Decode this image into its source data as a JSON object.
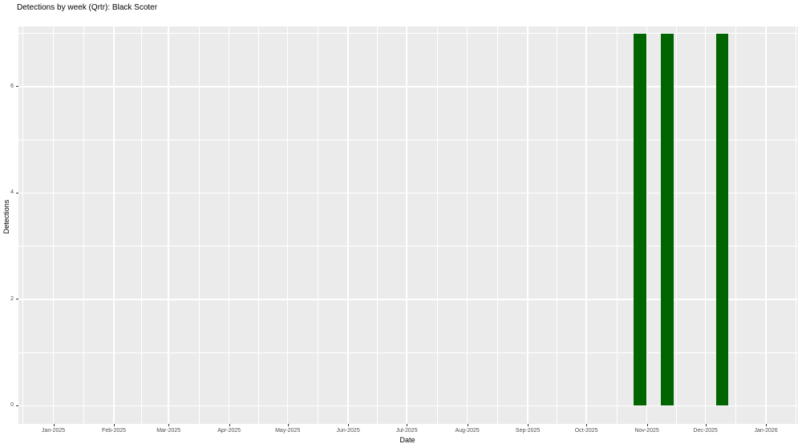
{
  "chart_data": {
    "type": "bar",
    "title": "Detections by week (Qrtr): Black Scoter",
    "xlabel": "Date",
    "ylabel": "Detections",
    "x_ticks": [
      {
        "label": "Jan-2025",
        "day": 0
      },
      {
        "label": "Feb-2025",
        "day": 31
      },
      {
        "label": "Mar-2025",
        "day": 59
      },
      {
        "label": "Apr-2025",
        "day": 90
      },
      {
        "label": "May-2025",
        "day": 120
      },
      {
        "label": "Jun-2025",
        "day": 151
      },
      {
        "label": "Jul-2025",
        "day": 181
      },
      {
        "label": "Aug-2025",
        "day": 212
      },
      {
        "label": "Sep-2025",
        "day": 243
      },
      {
        "label": "Oct-2025",
        "day": 273
      },
      {
        "label": "Nov-2025",
        "day": 304
      },
      {
        "label": "Dec-2025",
        "day": 334
      },
      {
        "label": "Jan-2026",
        "day": 365
      }
    ],
    "y_ticks": [
      0,
      2,
      4,
      6
    ],
    "y_minor": [
      1,
      3,
      5,
      7
    ],
    "x_domain_days": [
      -17.9,
      381.4
    ],
    "y_domain": [
      -0.34,
      7.13
    ],
    "grid": true,
    "legend": false,
    "points": [
      {
        "week": "2025-10-26",
        "day": 298,
        "count": 7
      },
      {
        "week": "2025-11-09",
        "day": 312,
        "count": 7
      },
      {
        "week": "2025-12-07",
        "day": 340,
        "count": 7
      }
    ],
    "bar_width_days": 6.3,
    "bar_center_offset_days": 2.5,
    "colors": {
      "bar": "#006400",
      "panel_bg": "#EBEBEB",
      "grid": "#FFFFFF",
      "axis_text": "#4D4D4D",
      "axis_title": "#000000",
      "tick": "#333333"
    }
  }
}
